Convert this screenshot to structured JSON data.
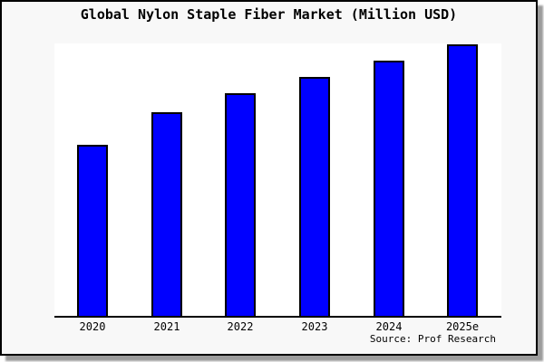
{
  "title": "Global Nylon Staple Fiber Market (Million USD)",
  "source_note": "Source: Prof Research",
  "colors": {
    "bar_fill": "#0000ff",
    "bar_border": "#000000",
    "panel_bg": "#f8f8f8",
    "plot_bg": "#ffffff",
    "axis": "#000000",
    "shadow": "#9c9c9c"
  },
  "chart_data": {
    "type": "bar",
    "title": "Global Nylon Staple Fiber Market (Million USD)",
    "categories": [
      "2020",
      "2021",
      "2022",
      "2023",
      "2024",
      "2025e"
    ],
    "values": [
      63,
      75,
      82,
      88,
      94,
      100
    ],
    "units": "percent of tallest bar (no y-axis scale shown in image)",
    "xlabel": "",
    "ylabel": "",
    "ylim": [
      0,
      100
    ],
    "grid": false,
    "legend": false,
    "annotations": [
      "Source: Prof Research"
    ]
  },
  "layout_hints": {
    "bar_count": 6,
    "orientation": "vertical"
  }
}
